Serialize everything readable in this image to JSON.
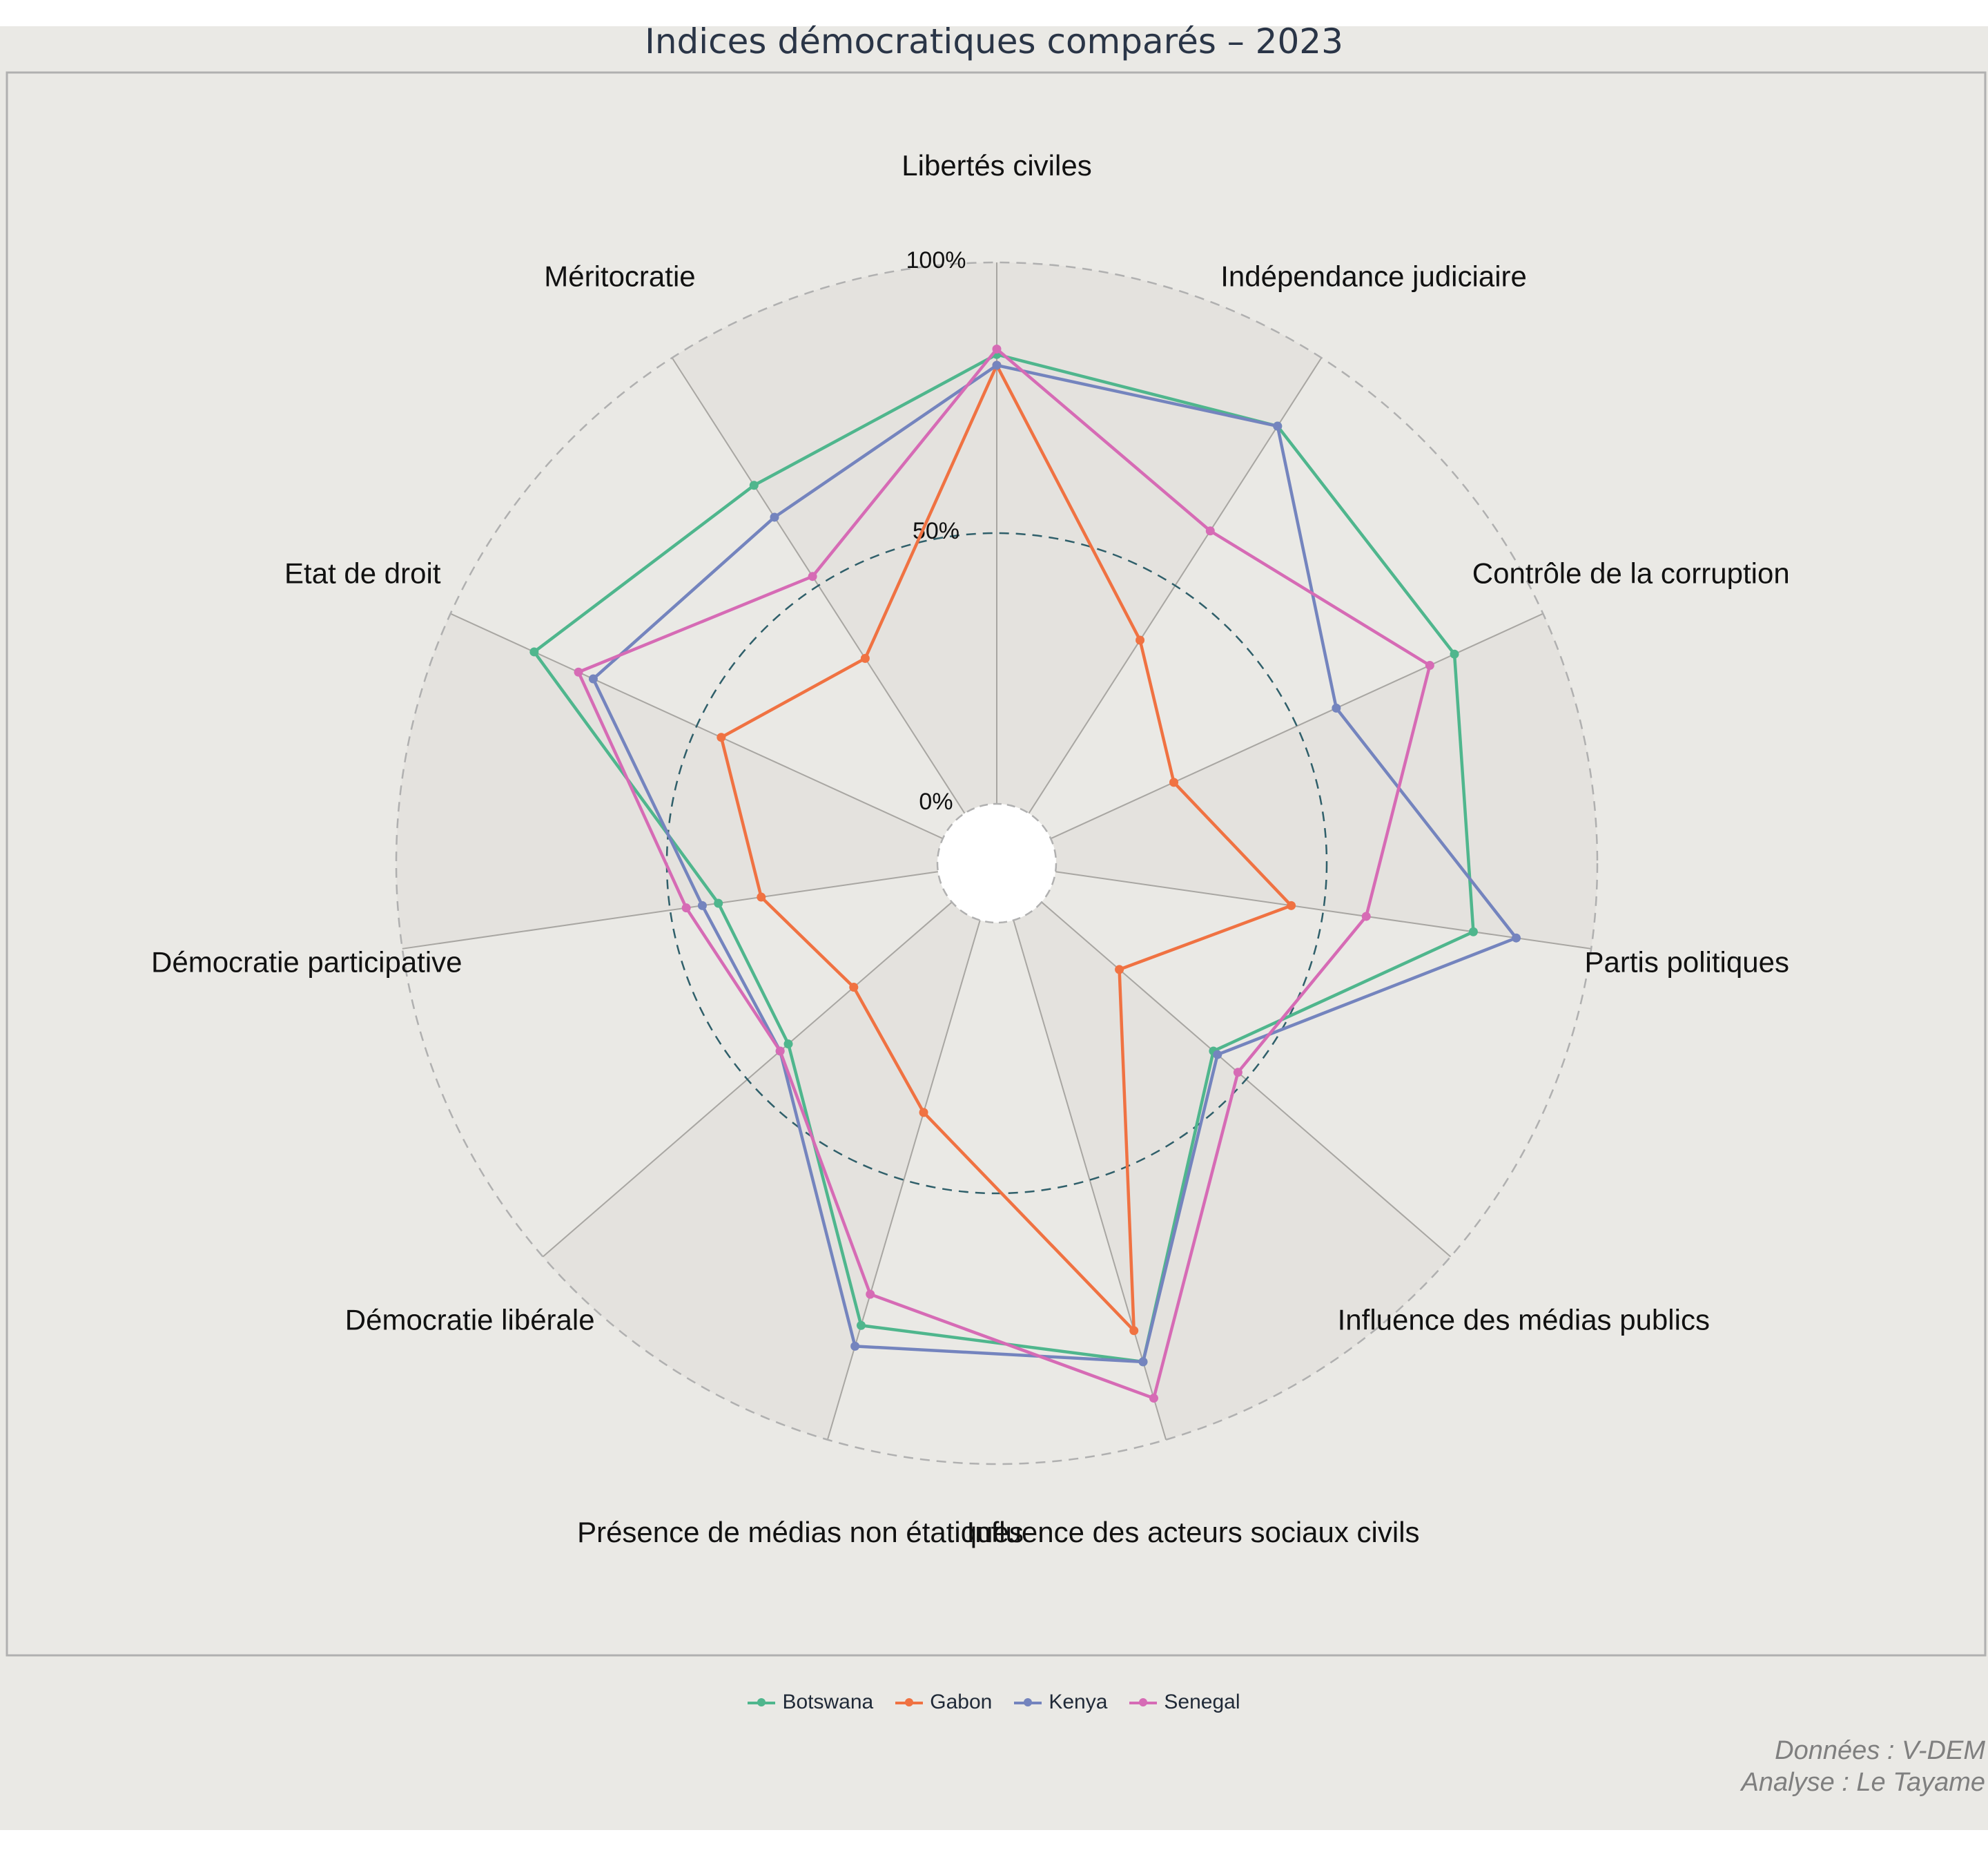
{
  "chart_data": {
    "type": "radar",
    "title": "Indices démocratiques comparés – 2023",
    "axes": [
      "Libertés civiles",
      "Indépendance judiciaire",
      "Contrôle de la corruption",
      "Partis politiques",
      "Influence des médias publics",
      "Influence des acteurs sociaux civils",
      "Présence de médias non étatiques",
      "Démocratie libérale",
      "Démocratie participative",
      "Etat de droit",
      "Méritocratie"
    ],
    "radial_ticks": [
      "0%",
      "50%",
      "100%"
    ],
    "rlim": [
      0,
      100
    ],
    "grid": true,
    "legend_position": "bottom",
    "series": [
      {
        "name": "Botswana",
        "color": "#4fb68d",
        "values": [
          83,
          85,
          82,
          78,
          42,
          85,
          78,
          40,
          41,
          83,
          72
        ]
      },
      {
        "name": "Gabon",
        "color": "#f07242",
        "values": [
          81,
          38,
          25,
          44,
          19,
          79,
          37,
          24,
          33,
          45,
          34
        ]
      },
      {
        "name": "Kenya",
        "color": "#7484be",
        "values": [
          81,
          85,
          58,
          86,
          43,
          85,
          82,
          42,
          44,
          71,
          65
        ]
      },
      {
        "name": "Senegal",
        "color": "#d66bb5",
        "values": [
          84,
          62,
          77,
          58,
          48,
          92,
          72,
          42,
          47,
          74,
          52
        ]
      }
    ]
  },
  "credits": {
    "line1": "Données : V-DEM",
    "line2": "Analyse : Le Tayame"
  }
}
